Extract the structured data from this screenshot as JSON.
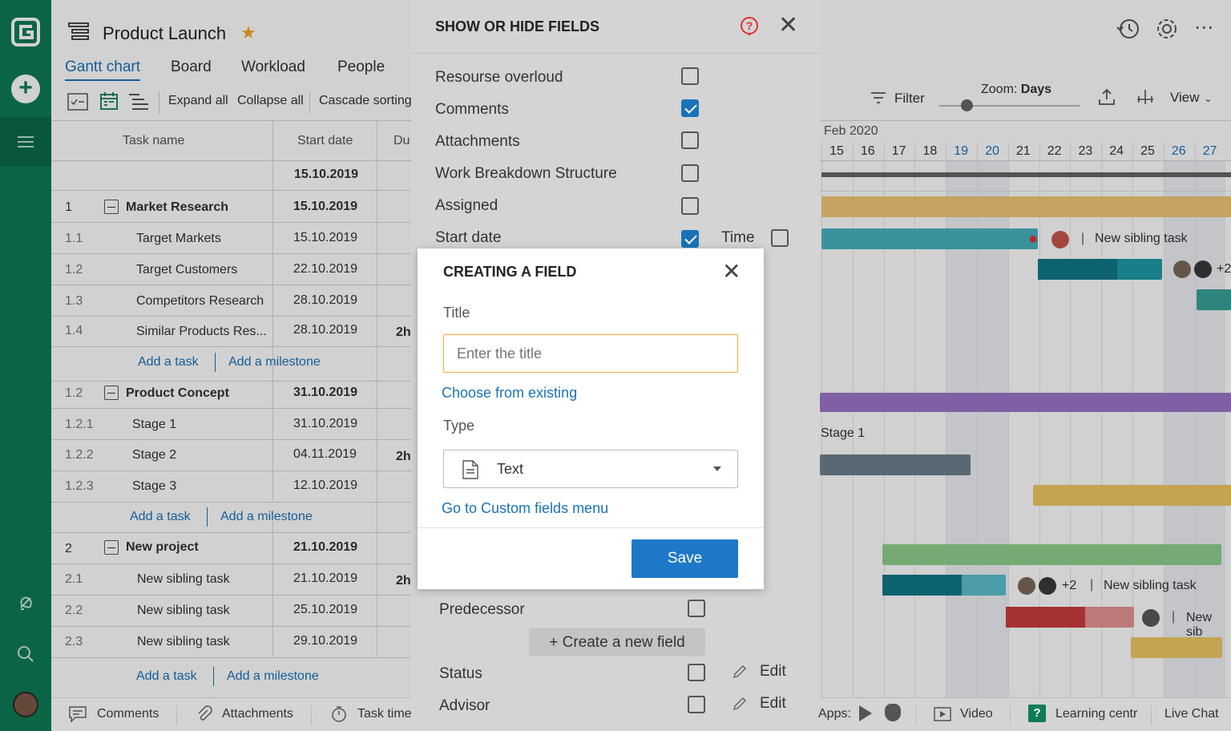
{
  "app": {
    "project_title": "Product Launch",
    "tabs": [
      "Gantt chart",
      "Board",
      "Workload",
      "People"
    ],
    "toolbar": {
      "expand": "Expand all",
      "collapse": "Collapse all",
      "cascade": "Cascade sorting"
    },
    "right_toolbar": {
      "filter": "Filter",
      "zoom_label": "Zoom: ",
      "zoom_value": "Days",
      "view": "View"
    }
  },
  "grid": {
    "headers": {
      "task_name": "Task name",
      "start_date": "Start date",
      "duration": "Du"
    },
    "project_start": "15.10.2019",
    "groups": [
      {
        "num": "1",
        "name": "Market Research",
        "start": "15.10.2019",
        "rows": [
          {
            "num": "1.1",
            "name": "Target Markets",
            "start": "15.10.2019",
            "dur": ""
          },
          {
            "num": "1.2",
            "name": "Target Customers",
            "start": "22.10.2019",
            "dur": ""
          },
          {
            "num": "1.3",
            "name": "Competitors Research",
            "start": "28.10.2019",
            "dur": ""
          },
          {
            "num": "1.4",
            "name": "Similar Products Res...",
            "start": "28.10.2019",
            "dur": "2h"
          }
        ]
      },
      {
        "num": "1.2",
        "name": "Product Concept",
        "start": "31.10.2019",
        "rows": [
          {
            "num": "1.2.1",
            "name": "Stage 1",
            "start": "31.10.2019",
            "dur": ""
          },
          {
            "num": "1.2.2",
            "name": "Stage 2",
            "start": "04.11.2019",
            "dur": "2h"
          },
          {
            "num": "1.2.3",
            "name": "Stage 3",
            "start": "12.10.2019",
            "dur": ""
          }
        ]
      },
      {
        "num": "2",
        "name": "New project",
        "start": "21.10.2019",
        "rows": [
          {
            "num": "2.1",
            "name": "New sibling task",
            "start": "21.10.2019",
            "dur": "2h"
          },
          {
            "num": "2.2",
            "name": "New sibling task",
            "start": "25.10.2019",
            "dur": ""
          },
          {
            "num": "2.3",
            "name": "New sibling task",
            "start": "29.10.2019",
            "dur": ""
          }
        ]
      }
    ],
    "add_task": "Add a task",
    "add_milestone": "Add a milestone"
  },
  "gantt": {
    "month": "Feb 2020",
    "days": [
      "15",
      "16",
      "17",
      "18",
      "19",
      "20",
      "21",
      "22",
      "23",
      "24",
      "25",
      "26",
      "27"
    ],
    "weekend_days": [
      "19",
      "20",
      "26",
      "27"
    ],
    "labels": {
      "sibling": "New sibling task",
      "sibling_cut": "New sib",
      "stage1": "Stage 1",
      "plus2": "+2",
      "plus2_cut": "+2"
    }
  },
  "panel": {
    "title": "SHOW OR HIDE FIELDS",
    "fields": [
      {
        "label": "Resourse overloud",
        "checked": false
      },
      {
        "label": "Comments",
        "checked": true
      },
      {
        "label": "Attachments",
        "checked": false
      },
      {
        "label": "Work Breakdown Structure",
        "checked": false
      },
      {
        "label": "Assigned",
        "checked": false
      },
      {
        "label": "Start date",
        "checked": true
      }
    ],
    "time_label": "Time",
    "predecessor": "Predecessor",
    "create_field": "+ Create a new field",
    "status": "Status",
    "advisor": "Advisor",
    "edit": "Edit"
  },
  "modal": {
    "title": "CREATING A FIELD",
    "title_label": "Title",
    "title_placeholder": "Enter the title",
    "choose_existing": "Choose from existing",
    "type_label": "Type",
    "type_value": "Text",
    "custom_fields_link": "Go to Custom fields menu",
    "save": "Save"
  },
  "bottom": {
    "comments": "Comments",
    "attachments": "Attachments",
    "task_time": "Task time",
    "apps": "Apps:",
    "video": "Video",
    "learning": "Learning centr",
    "live_chat": "Live Chat"
  },
  "colors": {
    "brand": "#0e7c55",
    "accent": "#1a73b7",
    "star": "#f5a623"
  }
}
